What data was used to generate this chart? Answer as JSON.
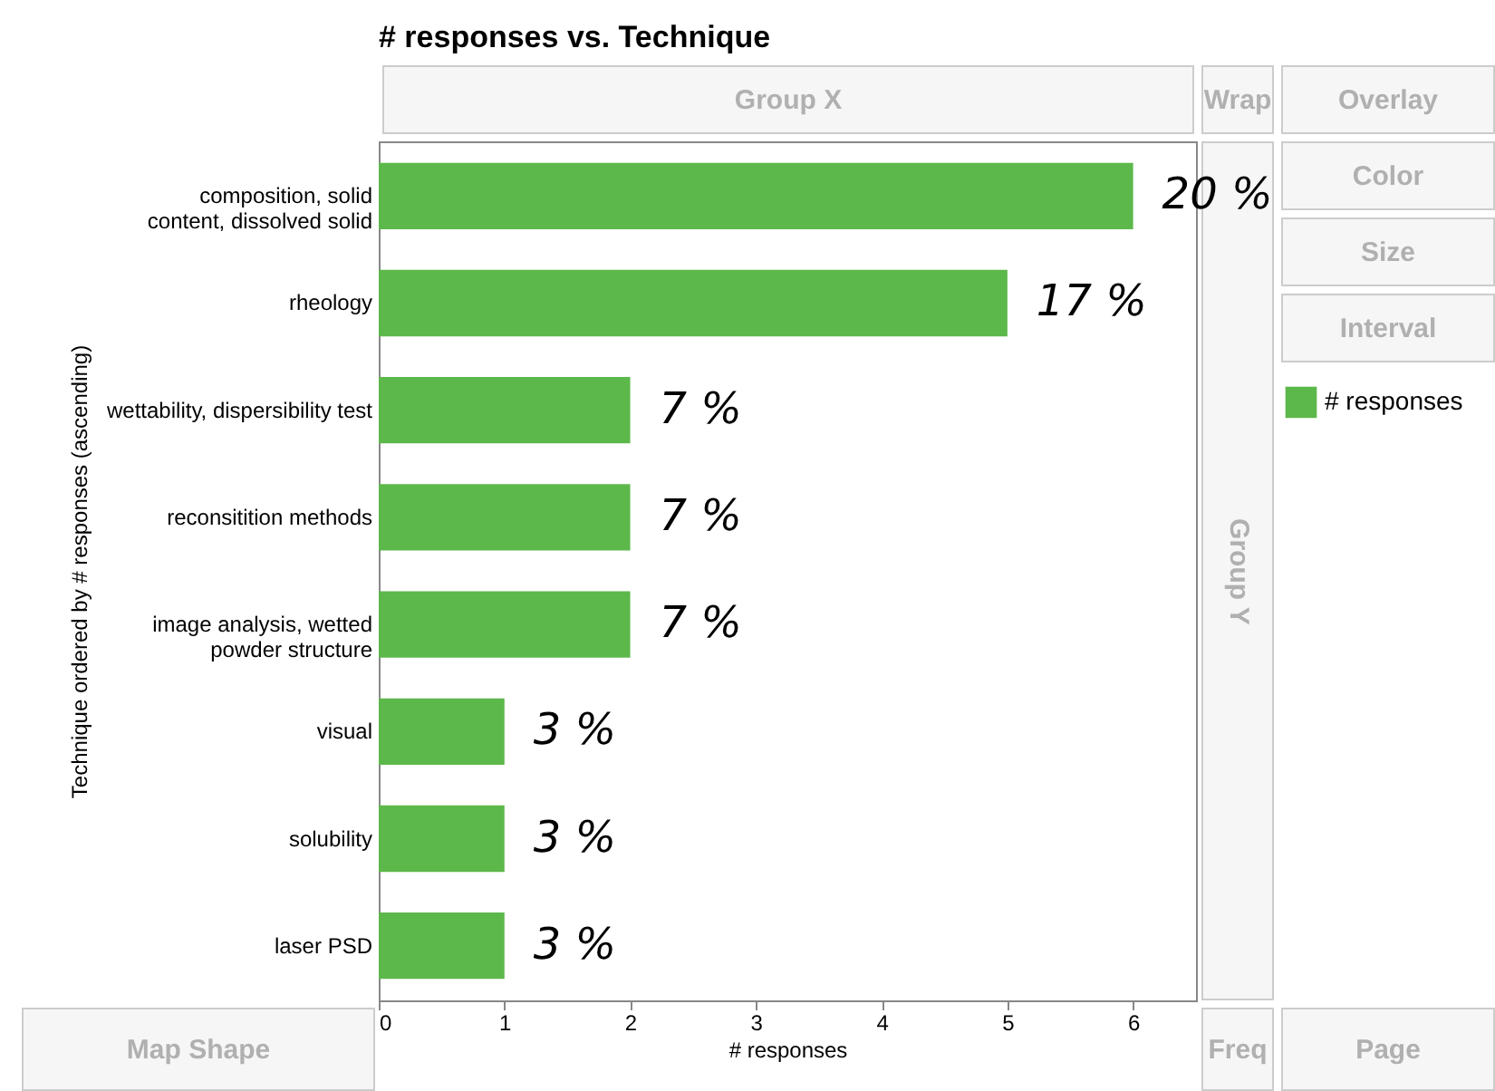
{
  "chart_data": {
    "type": "bar",
    "orientation": "horizontal",
    "title": "# responses vs. Technique",
    "xlabel": "# responses",
    "ylabel": "Technique ordered by # responses (ascending)",
    "categories": [
      "composition, solid content, dissolved solid",
      "rheology",
      "wettability, dispersibility test",
      "reconsitition methods",
      "image analysis, wetted powder structure",
      "visual",
      "solubility",
      "laser PSD"
    ],
    "series": [
      {
        "name": "# responses",
        "color": "#5cb84a",
        "values": [
          6,
          5,
          2,
          2,
          2,
          1,
          1,
          1
        ]
      }
    ],
    "xlim": [
      0,
      6.5
    ],
    "xticks": [
      0,
      1,
      2,
      3,
      4,
      5,
      6
    ],
    "grid": false,
    "legend": "right",
    "annotations": [
      "Group X",
      "Wrap",
      "Overlay",
      "Color",
      "Size",
      "Interval",
      "Group Y",
      "Map Shape",
      "Freq",
      "Page",
      {
        "text": "20 %",
        "x": 6,
        "y": "composition, solid content, dissolved solid"
      },
      {
        "text": "17 %",
        "x": 5,
        "y": "rheology"
      },
      {
        "text": "7 %",
        "x": 2,
        "y": "wettability, dispersibility test"
      },
      {
        "text": "7 %",
        "x": 2,
        "y": "reconsitition methods"
      },
      {
        "text": "7 %",
        "x": 2,
        "y": "image analysis, wetted powder structure"
      },
      {
        "text": "3 %",
        "x": 1,
        "y": "visual"
      },
      {
        "text": "3 %",
        "x": 1,
        "y": "solubility"
      },
      {
        "text": "3 %",
        "x": 1,
        "y": "laser PSD"
      }
    ]
  }
}
